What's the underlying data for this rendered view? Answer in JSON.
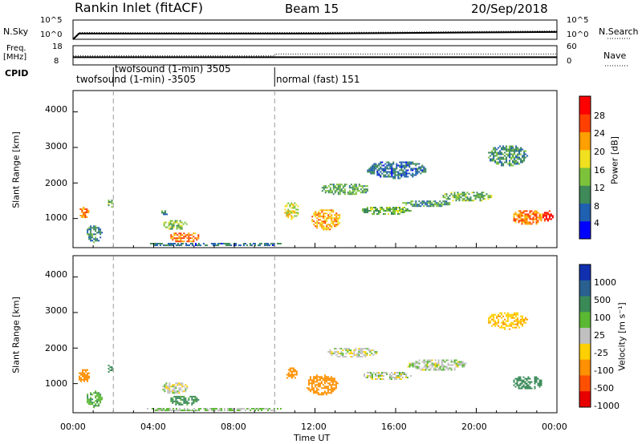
{
  "header": {
    "station": "Rankin Inlet (fitACF)",
    "beam": "Beam 15",
    "date": "20/Sep/2018"
  },
  "top_panel": {
    "left_label": "N.Sky",
    "right_label": "N.Search",
    "left_ticks": [
      "10^5",
      "10^0"
    ],
    "right_ticks": [
      "10^5",
      "10^0"
    ]
  },
  "freq_panel": {
    "left_label_1": "Freq.",
    "left_label_2": "[MHz]",
    "right_label": "Nave",
    "left_ticks": [
      "18",
      "8"
    ],
    "right_ticks": [
      "60",
      "0"
    ]
  },
  "cpid": {
    "label": "CPID",
    "entries": [
      {
        "text": "twofsound (1-min) -3505",
        "start_hour": 0
      },
      {
        "text": "twofsound (1-min) 3505",
        "start_hour": 2
      },
      {
        "text": "normal (fast) 151",
        "start_hour": 10
      }
    ]
  },
  "x_axis": {
    "label": "Time UT",
    "ticks": [
      "00:00",
      "04:00",
      "08:00",
      "12:00",
      "16:00",
      "20:00",
      "00:00"
    ],
    "range_hours": [
      0,
      24
    ]
  },
  "power_panel": {
    "ylabel": "Slant Range [km]",
    "yticks": [
      "1000",
      "2000",
      "3000",
      "4000"
    ],
    "colorbar_label": "Power [dB]",
    "colorbar_ticks": [
      "28",
      "24",
      "20",
      "16",
      "12",
      "8",
      "4"
    ],
    "colors": [
      "#0000ff",
      "#2060b0",
      "#3e8a58",
      "#7cc23a",
      "#f0e020",
      "#ffa000",
      "#ff4000",
      "#ff0000"
    ]
  },
  "velocity_panel": {
    "ylabel": "Slant Range [km]",
    "yticks": [
      "1000",
      "2000",
      "3000",
      "4000"
    ],
    "colorbar_label": "Velocity [m s⁻¹]",
    "colorbar_ticks": [
      "1000",
      "500",
      "100",
      "25",
      "-25",
      "-100",
      "-500",
      "-1000"
    ],
    "colors": [
      "#1030b0",
      "#2a6090",
      "#3a8a58",
      "#5ab832",
      "#c0c0c0",
      "#ffd000",
      "#ff9000",
      "#ff5000",
      "#e80000"
    ]
  },
  "chart_data": [
    {
      "type": "line",
      "title": "",
      "ylabel": "N.Sky / N.Search",
      "series": [
        {
          "name": "N.Sky",
          "x_hours": [
            0,
            0.3,
            4,
            8,
            12,
            16,
            20,
            24
          ],
          "values": [
            1,
            30,
            30,
            30,
            30,
            40,
            60,
            80
          ]
        },
        {
          "name": "N.Search",
          "x_hours": [
            0,
            0.3,
            4,
            8,
            12,
            16,
            20,
            24
          ],
          "values": [
            1,
            60,
            50,
            50,
            60,
            70,
            100,
            150
          ]
        }
      ],
      "y_scale": "log",
      "ylim": [
        1,
        100000
      ]
    },
    {
      "type": "line",
      "ylabel": "Freq. [MHz] / Nave",
      "series": [
        {
          "name": "Freq.",
          "x_hours": [
            0,
            0.3,
            10,
            24
          ],
          "values": [
            12,
            12,
            12,
            12
          ]
        },
        {
          "name": "Nave",
          "x_hours": [
            0,
            0.3,
            10,
            10.01,
            24
          ],
          "values": [
            28,
            28,
            28,
            34,
            34
          ]
        }
      ],
      "ylim": [
        8,
        18
      ]
    },
    {
      "type": "heatmap",
      "title": "Power [dB]",
      "xlabel": "Time UT",
      "ylabel": "Slant Range [km]",
      "xlim": [
        0,
        24
      ],
      "ylim": [
        180,
        4600
      ],
      "zlim": [
        0,
        30
      ],
      "blobs": [
        {
          "x": 0.5,
          "y": 1200,
          "w": 0.5,
          "h": 350,
          "v": 22
        },
        {
          "x": 1.0,
          "y": 600,
          "w": 0.8,
          "h": 500,
          "v": 9
        },
        {
          "x": 1.8,
          "y": 1450,
          "w": 0.3,
          "h": 250,
          "v": 12
        },
        {
          "x": 5.0,
          "y": 850,
          "w": 1.2,
          "h": 300,
          "v": 13
        },
        {
          "x": 5.5,
          "y": 500,
          "w": 1.5,
          "h": 300,
          "v": 22
        },
        {
          "x": 4.5,
          "y": 1200,
          "w": 0.4,
          "h": 150,
          "v": 8
        },
        {
          "x": 10.8,
          "y": 1250,
          "w": 0.8,
          "h": 500,
          "v": 16
        },
        {
          "x": 12.5,
          "y": 1000,
          "w": 1.5,
          "h": 600,
          "v": 20
        },
        {
          "x": 13.5,
          "y": 1850,
          "w": 2.5,
          "h": 350,
          "v": 11
        },
        {
          "x": 15.5,
          "y": 1250,
          "w": 2.5,
          "h": 250,
          "v": 12
        },
        {
          "x": 17.5,
          "y": 1450,
          "w": 2.5,
          "h": 200,
          "v": 10
        },
        {
          "x": 19.5,
          "y": 1650,
          "w": 2.5,
          "h": 300,
          "v": 12
        },
        {
          "x": 22.5,
          "y": 1050,
          "w": 1.5,
          "h": 450,
          "v": 22
        },
        {
          "x": 23.5,
          "y": 1100,
          "w": 0.6,
          "h": 350,
          "v": 28
        },
        {
          "x": 21.5,
          "y": 2800,
          "w": 2.0,
          "h": 600,
          "v": 9
        },
        {
          "x": 16.0,
          "y": 2400,
          "w": 3.0,
          "h": 500,
          "v": 7
        },
        {
          "x": 7.0,
          "y": 300,
          "w": 7.0,
          "h": 120,
          "v": 7
        }
      ]
    },
    {
      "type": "heatmap",
      "title": "Velocity [m s⁻¹]",
      "xlabel": "Time UT",
      "ylabel": "Slant Range [km]",
      "xlim": [
        0,
        24
      ],
      "ylim": [
        180,
        4600
      ],
      "zlim": [
        -1000,
        1000
      ],
      "blobs": [
        {
          "x": 0.5,
          "y": 1250,
          "w": 0.6,
          "h": 400,
          "v": -300
        },
        {
          "x": 1.0,
          "y": 600,
          "w": 0.8,
          "h": 500,
          "v": 80
        },
        {
          "x": 1.8,
          "y": 1450,
          "w": 0.3,
          "h": 250,
          "v": 150
        },
        {
          "x": 5.0,
          "y": 900,
          "w": 1.3,
          "h": 350,
          "v": 0
        },
        {
          "x": 5.5,
          "y": 550,
          "w": 1.5,
          "h": 300,
          "v": 120
        },
        {
          "x": 10.8,
          "y": 1300,
          "w": 0.6,
          "h": 400,
          "v": -400
        },
        {
          "x": 12.3,
          "y": 1000,
          "w": 1.6,
          "h": 600,
          "v": -350
        },
        {
          "x": 13.8,
          "y": 1900,
          "w": 2.5,
          "h": 300,
          "v": 0
        },
        {
          "x": 15.5,
          "y": 1250,
          "w": 2.5,
          "h": 250,
          "v": 0
        },
        {
          "x": 18.0,
          "y": 1550,
          "w": 3.0,
          "h": 350,
          "v": 10
        },
        {
          "x": 22.5,
          "y": 1050,
          "w": 1.5,
          "h": 400,
          "v": 300
        },
        {
          "x": 21.5,
          "y": 2800,
          "w": 2.0,
          "h": 500,
          "v": -80
        },
        {
          "x": 7.0,
          "y": 300,
          "w": 7.0,
          "h": 120,
          "v": 30
        }
      ]
    }
  ]
}
